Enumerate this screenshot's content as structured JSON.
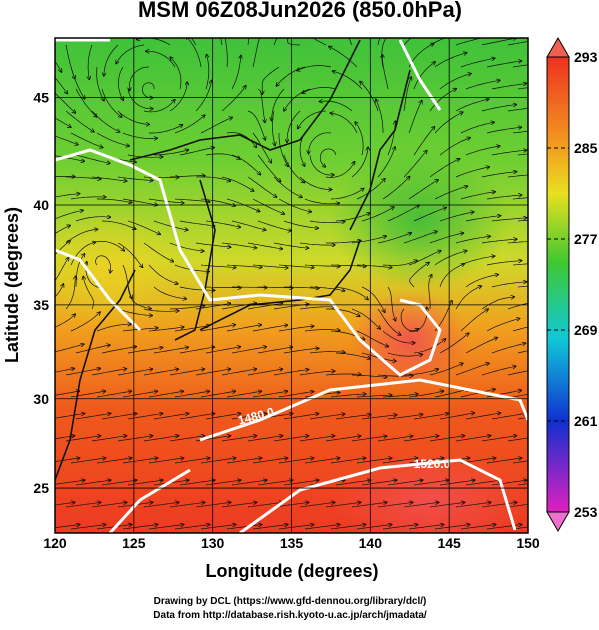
{
  "title": "MSM 06Z08Jun2026 (850.0hPa)",
  "x_axis": {
    "label": "Longitude (degrees)",
    "lim": [
      120,
      150
    ],
    "ticks": [
      120,
      125,
      130,
      135,
      140,
      145,
      150
    ]
  },
  "y_axis": {
    "label": "Latitude  (degrees)",
    "lim": [
      22.4,
      47.6
    ],
    "ticks": [
      25,
      30,
      35,
      40,
      45
    ],
    "scale": "mercator"
  },
  "colorbar": {
    "lim": [
      253,
      293
    ],
    "ticks": [
      253,
      261,
      269,
      277,
      285,
      293
    ]
  },
  "contour_labels": [
    "1480.0",
    "1520.0"
  ],
  "credits": [
    "Drawing by DCL (https://www.gfd-dennou.org/library/dcl/)",
    "Data from http://database.rish.kyoto-u.ac.jp/arch/jmadata/"
  ]
}
